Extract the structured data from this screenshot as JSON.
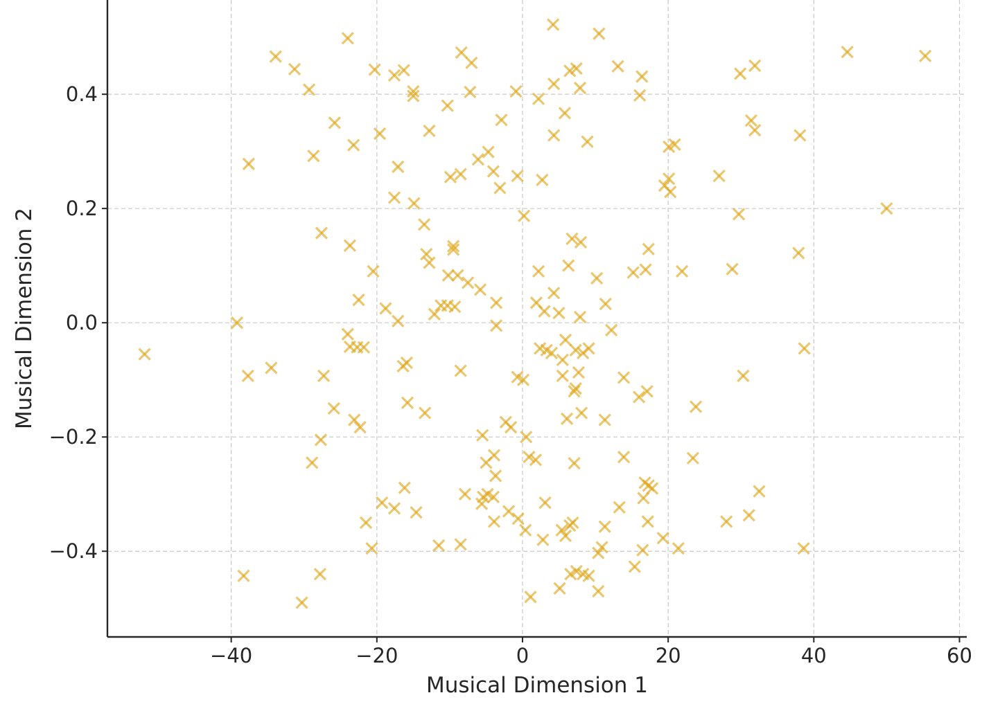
{
  "chart_data": {
    "type": "scatter",
    "title": "",
    "xlabel": "Musical Dimension 1",
    "ylabel": "Musical Dimension 2",
    "xlim": [
      -57,
      61
    ],
    "ylim": [
      -0.55,
      0.565
    ],
    "xticks": [
      -40,
      -20,
      0,
      20,
      40,
      60
    ],
    "xtick_labels": [
      "−40",
      "−20",
      "0",
      "20",
      "40",
      "60"
    ],
    "yticks": [
      -0.4,
      -0.2,
      0.0,
      0.2,
      0.4
    ],
    "ytick_labels": [
      "−0.4",
      "−0.2",
      "0.0",
      "0.2",
      "0.4"
    ],
    "grid": true,
    "marker": "x",
    "color": "#e0a820",
    "series": [
      {
        "points": [
          [
            -24,
            0.498
          ],
          [
            4.2,
            0.522
          ],
          [
            10.5,
            0.506
          ],
          [
            -8.4,
            0.473
          ],
          [
            44.6,
            0.474
          ],
          [
            55.3,
            0.467
          ],
          [
            -33.9,
            0.466
          ],
          [
            -7,
            0.455
          ],
          [
            -31.3,
            0.444
          ],
          [
            -20.3,
            0.443
          ],
          [
            -16.3,
            0.442
          ],
          [
            -17.6,
            0.433
          ],
          [
            13.1,
            0.449
          ],
          [
            7.4,
            0.445
          ],
          [
            6.5,
            0.441
          ],
          [
            16.4,
            0.431
          ],
          [
            29.9,
            0.436
          ],
          [
            31.9,
            0.45
          ],
          [
            -29.3,
            0.408
          ],
          [
            -15,
            0.405
          ],
          [
            -15,
            0.397
          ],
          [
            -7.2,
            0.404
          ],
          [
            -0.9,
            0.405
          ],
          [
            4.3,
            0.418
          ],
          [
            7.9,
            0.411
          ],
          [
            16.1,
            0.398
          ],
          [
            -10.3,
            0.38
          ],
          [
            2.2,
            0.392
          ],
          [
            -25.8,
            0.35
          ],
          [
            -19.6,
            0.331
          ],
          [
            -12.8,
            0.336
          ],
          [
            -2.9,
            0.355
          ],
          [
            5.8,
            0.367
          ],
          [
            4.3,
            0.328
          ],
          [
            8.9,
            0.317
          ],
          [
            31.4,
            0.354
          ],
          [
            31.9,
            0.337
          ],
          [
            38.1,
            0.328
          ],
          [
            -37.6,
            0.278
          ],
          [
            -28.7,
            0.292
          ],
          [
            -23.2,
            0.311
          ],
          [
            -4.7,
            0.299
          ],
          [
            -6.1,
            0.286
          ],
          [
            -17.1,
            0.273
          ],
          [
            -9.9,
            0.255
          ],
          [
            -8.5,
            0.26
          ],
          [
            -4,
            0.265
          ],
          [
            -3.1,
            0.236
          ],
          [
            -0.7,
            0.257
          ],
          [
            2.7,
            0.25
          ],
          [
            20.1,
            0.308
          ],
          [
            20.9,
            0.312
          ],
          [
            20.1,
            0.252
          ],
          [
            19.5,
            0.24
          ],
          [
            20.3,
            0.229
          ],
          [
            27,
            0.257
          ],
          [
            -17.6,
            0.219
          ],
          [
            -14.9,
            0.209
          ],
          [
            0.2,
            0.187
          ],
          [
            29.7,
            0.19
          ],
          [
            50,
            0.2
          ],
          [
            -13.5,
            0.172
          ],
          [
            -27.6,
            0.157
          ],
          [
            -23.7,
            0.135
          ],
          [
            -9.5,
            0.134
          ],
          [
            -9.5,
            0.128
          ],
          [
            -13.2,
            0.12
          ],
          [
            -12.8,
            0.105
          ],
          [
            6.8,
            0.147
          ],
          [
            8,
            0.141
          ],
          [
            17.3,
            0.129
          ],
          [
            37.9,
            0.122
          ],
          [
            -20.5,
            0.09
          ],
          [
            -10.2,
            0.083
          ],
          [
            -8.9,
            0.083
          ],
          [
            -7.5,
            0.07
          ],
          [
            -5.8,
            0.058
          ],
          [
            2.2,
            0.09
          ],
          [
            6.3,
            0.1
          ],
          [
            10.2,
            0.078
          ],
          [
            15.2,
            0.088
          ],
          [
            16.9,
            0.093
          ],
          [
            21.9,
            0.09
          ],
          [
            28.8,
            0.094
          ],
          [
            -22.5,
            0.04
          ],
          [
            -18.8,
            0.025
          ],
          [
            -17.1,
            0.003
          ],
          [
            -12.1,
            0.015
          ],
          [
            -11.2,
            0.03
          ],
          [
            -10.3,
            0.03
          ],
          [
            -9.3,
            0.028
          ],
          [
            -3.6,
            0.035
          ],
          [
            1.9,
            0.035
          ],
          [
            3,
            0.02
          ],
          [
            4.3,
            0.052
          ],
          [
            5,
            0.017
          ],
          [
            7.9,
            0.01
          ],
          [
            11.4,
            0.033
          ],
          [
            12.2,
            -0.013
          ],
          [
            -3.6,
            -0.005
          ],
          [
            -24,
            -0.02
          ],
          [
            -23.7,
            -0.042
          ],
          [
            -22.7,
            -0.043
          ],
          [
            -21.8,
            -0.043
          ],
          [
            -39.2,
            0
          ],
          [
            -51.9,
            -0.055
          ],
          [
            -37.7,
            -0.093
          ],
          [
            -34.5,
            -0.079
          ],
          [
            -27.3,
            -0.093
          ],
          [
            -15.9,
            -0.07
          ],
          [
            -16.4,
            -0.076
          ],
          [
            -8.5,
            -0.084
          ],
          [
            -0.7,
            -0.095
          ],
          [
            0.1,
            -0.1
          ],
          [
            2.4,
            -0.045
          ],
          [
            3.3,
            -0.048
          ],
          [
            4,
            -0.053
          ],
          [
            5.5,
            -0.065
          ],
          [
            5.9,
            -0.03
          ],
          [
            5.5,
            -0.093
          ],
          [
            7.3,
            -0.048
          ],
          [
            8.3,
            -0.053
          ],
          [
            9.1,
            -0.045
          ],
          [
            7.7,
            -0.087
          ],
          [
            7.3,
            -0.115
          ],
          [
            7.1,
            -0.12
          ],
          [
            13.9,
            -0.096
          ],
          [
            16,
            -0.13
          ],
          [
            17.1,
            -0.12
          ],
          [
            38.7,
            -0.045
          ],
          [
            30.3,
            -0.093
          ],
          [
            -15.8,
            -0.14
          ],
          [
            -13.4,
            -0.158
          ],
          [
            -25.9,
            -0.15
          ],
          [
            -23.1,
            -0.17
          ],
          [
            -22.3,
            -0.183
          ],
          [
            -27.7,
            -0.205
          ],
          [
            -2.3,
            -0.174
          ],
          [
            -1.6,
            -0.183
          ],
          [
            -5.5,
            -0.197
          ],
          [
            0.5,
            -0.2
          ],
          [
            6.1,
            -0.168
          ],
          [
            8.1,
            -0.158
          ],
          [
            11.3,
            -0.17
          ],
          [
            23.8,
            -0.147
          ],
          [
            -28.9,
            -0.245
          ],
          [
            -5,
            -0.245
          ],
          [
            -3.9,
            -0.232
          ],
          [
            -3.7,
            -0.268
          ],
          [
            0.9,
            -0.235
          ],
          [
            1.8,
            -0.24
          ],
          [
            7.1,
            -0.246
          ],
          [
            13.9,
            -0.235
          ],
          [
            23.4,
            -0.237
          ],
          [
            -16.2,
            -0.289
          ],
          [
            -7.9,
            -0.3
          ],
          [
            -5.6,
            -0.317
          ],
          [
            -5.4,
            -0.305
          ],
          [
            -4.8,
            -0.3
          ],
          [
            -4,
            -0.305
          ],
          [
            -19.3,
            -0.315
          ],
          [
            -17.6,
            -0.325
          ],
          [
            -14.6,
            -0.332
          ],
          [
            -1.9,
            -0.33
          ],
          [
            -3.9,
            -0.348
          ],
          [
            -0.6,
            -0.343
          ],
          [
            3.1,
            -0.315
          ],
          [
            13.3,
            -0.323
          ],
          [
            16.6,
            -0.307
          ],
          [
            16.8,
            -0.28
          ],
          [
            17.3,
            -0.285
          ],
          [
            17.8,
            -0.29
          ],
          [
            32.5,
            -0.295
          ],
          [
            -21.5,
            -0.35
          ],
          [
            0.4,
            -0.363
          ],
          [
            2.8,
            -0.38
          ],
          [
            5.4,
            -0.363
          ],
          [
            5.9,
            -0.373
          ],
          [
            6.5,
            -0.355
          ],
          [
            6.9,
            -0.35
          ],
          [
            11.3,
            -0.357
          ],
          [
            17.2,
            -0.348
          ],
          [
            19.3,
            -0.377
          ],
          [
            28,
            -0.348
          ],
          [
            31.1,
            -0.337
          ],
          [
            -20.7,
            -0.395
          ],
          [
            -11.5,
            -0.39
          ],
          [
            -8.5,
            -0.388
          ],
          [
            10.4,
            -0.403
          ],
          [
            10.9,
            -0.393
          ],
          [
            16.5,
            -0.398
          ],
          [
            21.4,
            -0.395
          ],
          [
            38.6,
            -0.395
          ],
          [
            -38.3,
            -0.443
          ],
          [
            -27.8,
            -0.44
          ],
          [
            -30.3,
            -0.49
          ],
          [
            1.1,
            -0.48
          ],
          [
            5.1,
            -0.465
          ],
          [
            6.6,
            -0.44
          ],
          [
            7.4,
            -0.435
          ],
          [
            8.3,
            -0.44
          ],
          [
            9.1,
            -0.443
          ],
          [
            10.4,
            -0.47
          ],
          [
            15.4,
            -0.427
          ]
        ]
      }
    ]
  }
}
